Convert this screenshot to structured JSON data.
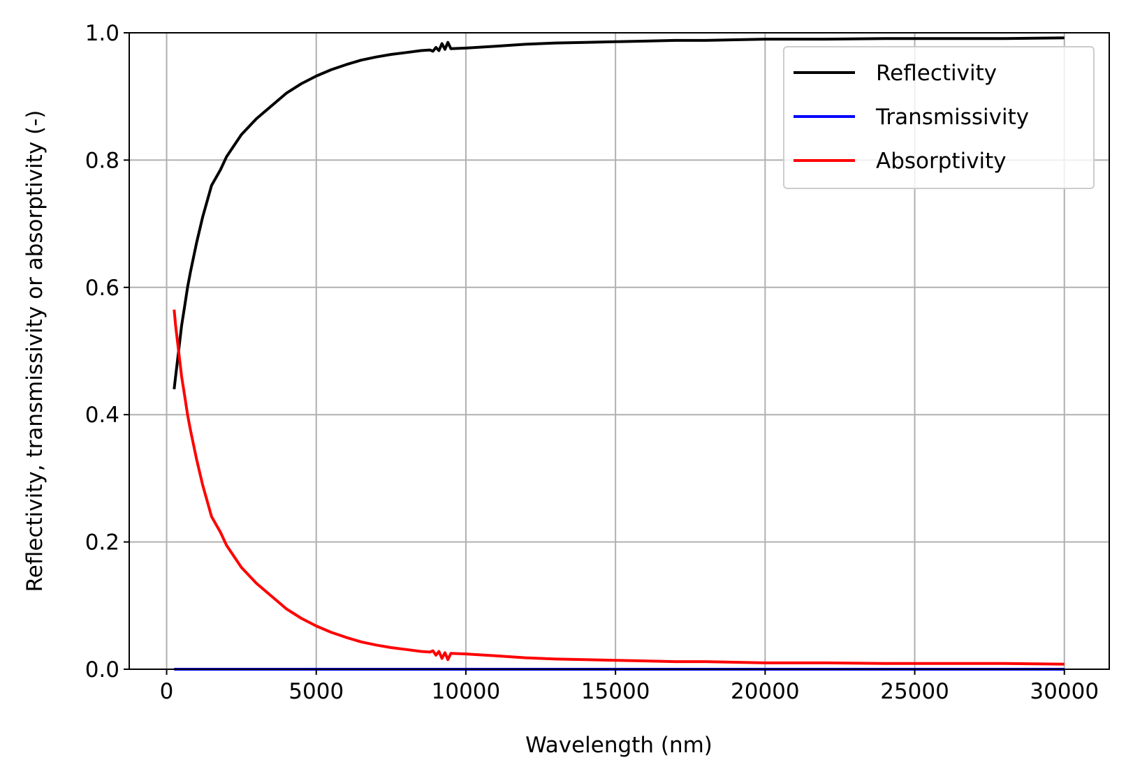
{
  "chart_data": {
    "type": "line",
    "title": "",
    "xlabel": "Wavelength (nm)",
    "ylabel": "Reflectivity, transmissivity or absorptivity (-)",
    "xlim": [
      -1250,
      31500
    ],
    "ylim": [
      0,
      1.0
    ],
    "x_ticks": [
      0,
      5000,
      10000,
      15000,
      20000,
      25000,
      30000
    ],
    "x_tick_labels": [
      "0",
      "5000",
      "10000",
      "15000",
      "20000",
      "25000",
      "30000"
    ],
    "y_ticks": [
      0,
      0.2,
      0.4,
      0.6,
      0.8,
      1.0
    ],
    "y_tick_labels": [
      "0.0",
      "0.2",
      "0.4",
      "0.6",
      "0.8",
      "1.0"
    ],
    "grid": true,
    "legend": "top-right",
    "series": [
      {
        "name": "Reflectivity",
        "color": "#000000",
        "x": [
          250,
          300,
          400,
          500,
          600,
          700,
          800,
          1000,
          1200,
          1500,
          1800,
          2000,
          2500,
          3000,
          3500,
          4000,
          4500,
          5000,
          5500,
          6000,
          6500,
          7000,
          7500,
          8000,
          8500,
          8800,
          8900,
          9000,
          9100,
          9200,
          9300,
          9400,
          9500,
          10000,
          11000,
          12000,
          13000,
          14000,
          15000,
          16000,
          17000,
          18000,
          20000,
          22000,
          24000,
          26000,
          28000,
          30000
        ],
        "y": [
          0.44,
          0.46,
          0.5,
          0.54,
          0.57,
          0.6,
          0.625,
          0.67,
          0.71,
          0.76,
          0.785,
          0.805,
          0.84,
          0.865,
          0.885,
          0.905,
          0.92,
          0.932,
          0.942,
          0.95,
          0.957,
          0.962,
          0.966,
          0.969,
          0.972,
          0.973,
          0.971,
          0.977,
          0.972,
          0.983,
          0.974,
          0.985,
          0.975,
          0.976,
          0.979,
          0.982,
          0.984,
          0.985,
          0.986,
          0.987,
          0.988,
          0.988,
          0.99,
          0.99,
          0.991,
          0.991,
          0.991,
          0.992
        ]
      },
      {
        "name": "Transmissivity",
        "color": "#0000ff",
        "x": [
          250,
          30000
        ],
        "y": [
          0,
          0
        ]
      },
      {
        "name": "Absorptivity",
        "color": "#ff0000",
        "x": [
          250,
          300,
          400,
          500,
          600,
          700,
          800,
          1000,
          1200,
          1500,
          1800,
          2000,
          2500,
          3000,
          3500,
          4000,
          4500,
          5000,
          5500,
          6000,
          6500,
          7000,
          7500,
          8000,
          8500,
          8800,
          8900,
          9000,
          9100,
          9200,
          9300,
          9400,
          9500,
          10000,
          11000,
          12000,
          13000,
          14000,
          15000,
          16000,
          17000,
          18000,
          20000,
          22000,
          24000,
          26000,
          28000,
          30000
        ],
        "y": [
          0.565,
          0.54,
          0.5,
          0.46,
          0.43,
          0.4,
          0.375,
          0.33,
          0.29,
          0.24,
          0.215,
          0.195,
          0.16,
          0.135,
          0.115,
          0.095,
          0.08,
          0.068,
          0.058,
          0.05,
          0.043,
          0.038,
          0.034,
          0.031,
          0.028,
          0.027,
          0.029,
          0.022,
          0.028,
          0.017,
          0.026,
          0.015,
          0.025,
          0.024,
          0.021,
          0.018,
          0.016,
          0.015,
          0.014,
          0.013,
          0.012,
          0.012,
          0.01,
          0.01,
          0.009,
          0.009,
          0.009,
          0.008
        ]
      }
    ]
  }
}
